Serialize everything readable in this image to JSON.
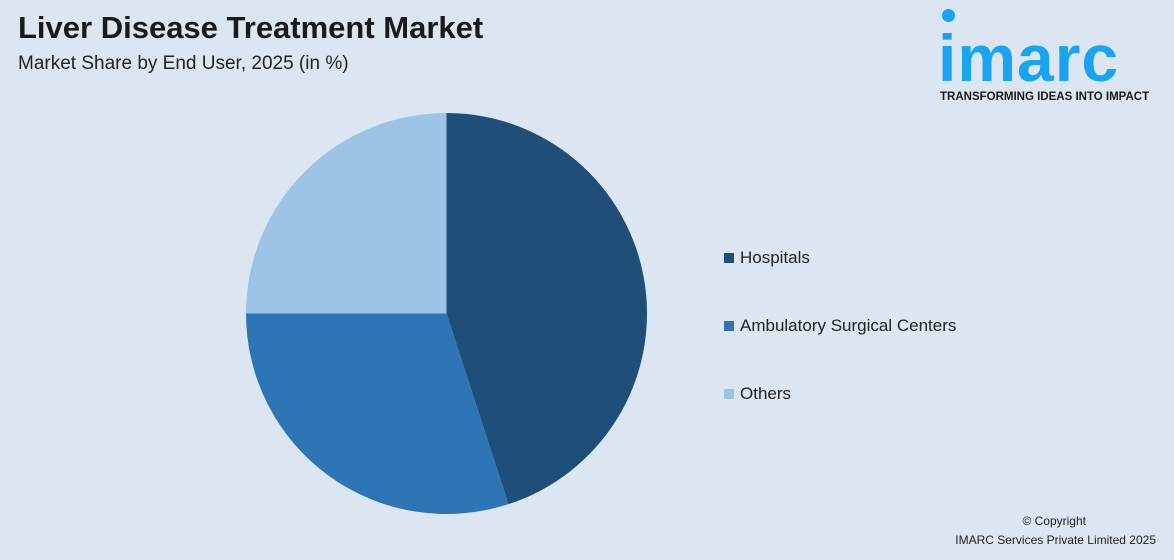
{
  "header": {
    "title": "Liver Disease Treatment Market",
    "subtitle": "Market Share by End User, 2025 (in %)"
  },
  "logo": {
    "word": "imarc",
    "tagline": "TRANSFORMING IDEAS INTO IMPACT",
    "color": "#1aa3ef"
  },
  "chart_data": {
    "type": "pie",
    "title": "Liver Disease Treatment Market",
    "subtitle": "Market Share by End User, 2025 (in %)",
    "categories": [
      "Hospitals",
      "Ambulatory Surgical Centers",
      "Others"
    ],
    "values": [
      45,
      30,
      25
    ],
    "colors": [
      "#1f4e79",
      "#2e75b6",
      "#9dc3e6"
    ],
    "start_angle": "12 o'clock, clockwise",
    "legend_position": "right"
  },
  "footer": {
    "copyright": "© Copyright",
    "company": "IMARC Services Private Limited 2025"
  }
}
